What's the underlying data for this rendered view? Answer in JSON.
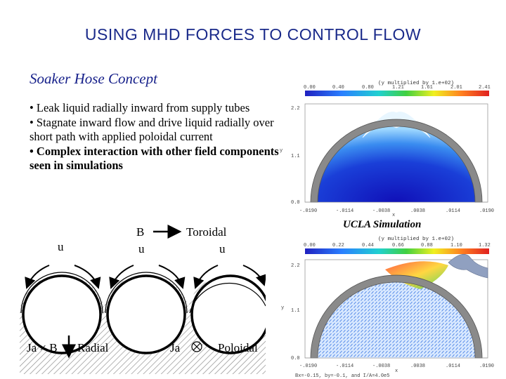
{
  "slide": {
    "title": "USING MHD FORCES TO CONTROL FLOW",
    "subtitle": "Soaker Hose Concept",
    "bullets": [
      "• Leak liquid radially inward from supply tubes",
      "• Stagnate inward flow and drive liquid radially over short path with applied poloidal current",
      "• Complex interaction with other field components seen in simulations"
    ]
  },
  "diagram": {
    "b_label": "B",
    "toroidal_label": "Toroidal",
    "u_labels": [
      "u",
      "u",
      "u"
    ],
    "jb_label": "Ja × B",
    "radial_label": "Radial",
    "ja_label": "Ja",
    "poloidal_label": "Poloidal"
  },
  "simulations": {
    "caption": "UCLA Simulation",
    "top": {
      "colorbar_title": "(y multiplied by  1.e+02)",
      "colorbar_ticks": [
        "0.00",
        "0.40",
        "0.80",
        "1.21",
        "1.61",
        "2.01",
        "2.41"
      ],
      "y_ticks": [
        "2.2",
        "1.1",
        "0.0"
      ],
      "x_ticks": [
        "-.0190",
        "-.0114",
        "-.0038",
        ".0038",
        ".0114",
        ".0190"
      ],
      "x_axis": "x",
      "y_axis": "y"
    },
    "bottom": {
      "colorbar_title": "(y multiplied by  1.e+02)",
      "colorbar_ticks": [
        "0.00",
        "0.22",
        "0.44",
        "0.66",
        "0.88",
        "1.10",
        "1.32"
      ],
      "y_ticks": [
        "2.2",
        "1.1",
        "0.0"
      ],
      "x_ticks": [
        "-.0190",
        "-.0114",
        "-.0038",
        ".0038",
        ".0114",
        ".0190"
      ],
      "x_axis": "x",
      "y_axis": "y",
      "footer": "Bx=-0.15, by=-0.1, and I/A=4.0e5"
    }
  },
  "colors": {
    "title": "#1a2a8a",
    "subtitle": "#16208a",
    "hatch": "#888888"
  }
}
